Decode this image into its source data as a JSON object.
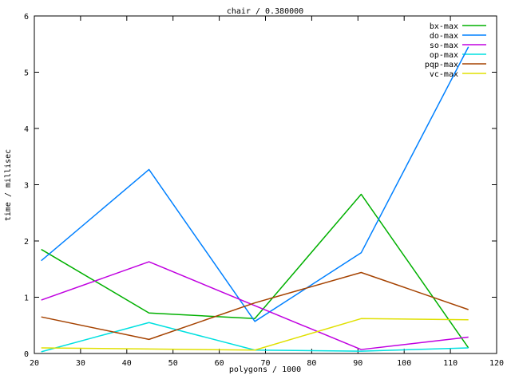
{
  "window": {
    "background": "#ffffff",
    "axis_color": "#000000",
    "text_color": "#000000"
  },
  "chart_data": {
    "type": "line",
    "title": "chair / 0.380000",
    "xlabel": "polygons / 1000",
    "ylabel": "time / millisec",
    "xlim": [
      20,
      120
    ],
    "ylim": [
      0,
      6
    ],
    "x_ticks": [
      20,
      30,
      40,
      50,
      60,
      70,
      80,
      90,
      100,
      110,
      120
    ],
    "y_ticks": [
      0,
      1,
      2,
      3,
      4,
      5,
      6
    ],
    "grid": false,
    "legend_position": "top-right",
    "x": [
      21.5,
      44.8,
      67.7,
      90.7,
      113.9
    ],
    "series": [
      {
        "name": "bx-max",
        "color": "#00b000",
        "values": [
          1.85,
          0.72,
          0.62,
          2.83,
          0.1
        ]
      },
      {
        "name": "do-max",
        "color": "#0080ff",
        "values": [
          1.65,
          3.27,
          0.57,
          1.79,
          5.45
        ]
      },
      {
        "name": "so-max",
        "color": "#c000e0",
        "values": [
          0.95,
          1.63,
          0.85,
          0.07,
          0.29
        ]
      },
      {
        "name": "op-max",
        "color": "#00e0e0",
        "values": [
          0.03,
          0.55,
          0.06,
          0.04,
          0.1
        ]
      },
      {
        "name": "pqp-max",
        "color": "#a54200",
        "values": [
          0.65,
          0.25,
          0.9,
          1.44,
          0.78
        ]
      },
      {
        "name": "vc-max",
        "color": "#e0e000",
        "values": [
          0.1,
          0.08,
          0.06,
          0.62,
          0.6
        ]
      }
    ]
  }
}
